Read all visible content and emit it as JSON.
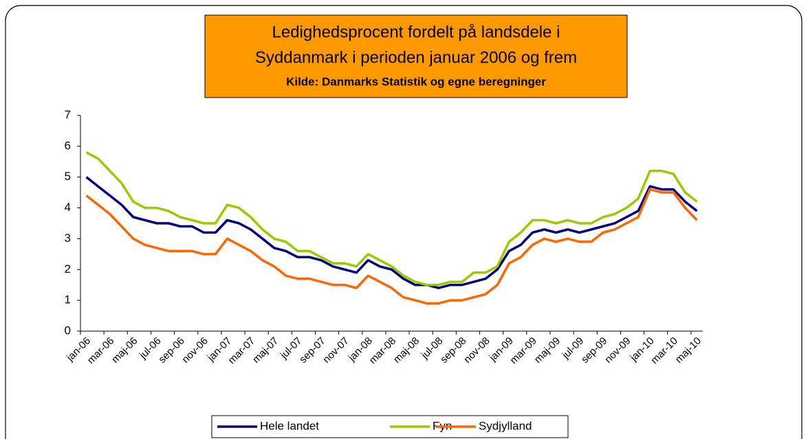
{
  "chart_data": {
    "type": "line",
    "title": [
      "Ledighedsprocent fordelt på landsdele i",
      "Syddanmark i perioden januar 2006 og frem"
    ],
    "subtitle": "Kilde: Danmarks Statistik og egne beregninger",
    "categories": [
      "jan-06",
      null,
      "mar-06",
      null,
      "maj-06",
      null,
      "jul-06",
      null,
      "sep-06",
      null,
      "nov-06",
      null,
      "jan-07",
      null,
      "mar-07",
      null,
      "maj-07",
      null,
      "jul-07",
      null,
      "sep-07",
      null,
      "nov-07",
      null,
      "jan-08",
      null,
      "mar-08",
      null,
      "maj-08",
      null,
      "jul-08",
      null,
      "sep-08",
      null,
      "nov-08",
      null,
      "jan-09",
      null,
      "mar-09",
      null,
      "maj-09",
      null,
      "jul-09",
      null,
      "sep-09",
      null,
      "nov-09",
      null,
      "jan-10",
      null,
      "mar-10",
      null,
      "maj-10"
    ],
    "series": [
      {
        "name": "Hele landet",
        "color": "#000080",
        "values": [
          5.0,
          4.7,
          4.4,
          4.1,
          3.7,
          3.6,
          3.5,
          3.5,
          3.4,
          3.4,
          3.2,
          3.2,
          3.6,
          3.5,
          3.3,
          3.0,
          2.7,
          2.6,
          2.4,
          2.4,
          2.3,
          2.1,
          2.0,
          1.9,
          2.3,
          2.1,
          2.0,
          1.7,
          1.5,
          1.5,
          1.4,
          1.5,
          1.5,
          1.6,
          1.7,
          2.0,
          2.6,
          2.8,
          3.2,
          3.3,
          3.2,
          3.3,
          3.2,
          3.3,
          3.4,
          3.5,
          3.7,
          3.9,
          4.7,
          4.6,
          4.6,
          4.2,
          3.9
        ]
      },
      {
        "name": "Fyn",
        "color": "#99cc00",
        "values": [
          5.8,
          5.6,
          5.2,
          4.8,
          4.2,
          4.0,
          4.0,
          3.9,
          3.7,
          3.6,
          3.5,
          3.5,
          4.1,
          4.0,
          3.7,
          3.3,
          3.0,
          2.9,
          2.6,
          2.6,
          2.4,
          2.2,
          2.2,
          2.1,
          2.5,
          2.3,
          2.1,
          1.8,
          1.6,
          1.5,
          1.5,
          1.6,
          1.6,
          1.9,
          1.9,
          2.1,
          2.9,
          3.2,
          3.6,
          3.6,
          3.5,
          3.6,
          3.5,
          3.5,
          3.7,
          3.8,
          4.0,
          4.3,
          5.2,
          5.2,
          5.1,
          4.5,
          4.2
        ]
      },
      {
        "name": "Sydjylland",
        "color": "#ff6600",
        "values": [
          4.4,
          4.1,
          3.8,
          3.4,
          3.0,
          2.8,
          2.7,
          2.6,
          2.6,
          2.6,
          2.5,
          2.5,
          3.0,
          2.8,
          2.6,
          2.3,
          2.1,
          1.8,
          1.7,
          1.7,
          1.6,
          1.5,
          1.5,
          1.4,
          1.8,
          1.6,
          1.4,
          1.1,
          1.0,
          0.9,
          0.9,
          1.0,
          1.0,
          1.1,
          1.2,
          1.5,
          2.2,
          2.4,
          2.8,
          3.0,
          2.9,
          3.0,
          2.9,
          2.9,
          3.2,
          3.3,
          3.5,
          3.7,
          4.6,
          4.5,
          4.5,
          4.0,
          3.6
        ]
      }
    ],
    "ylim": [
      0,
      7
    ],
    "yticks": [
      0,
      1,
      2,
      3,
      4,
      5,
      6,
      7
    ],
    "grid": false,
    "legend": "bottom"
  }
}
